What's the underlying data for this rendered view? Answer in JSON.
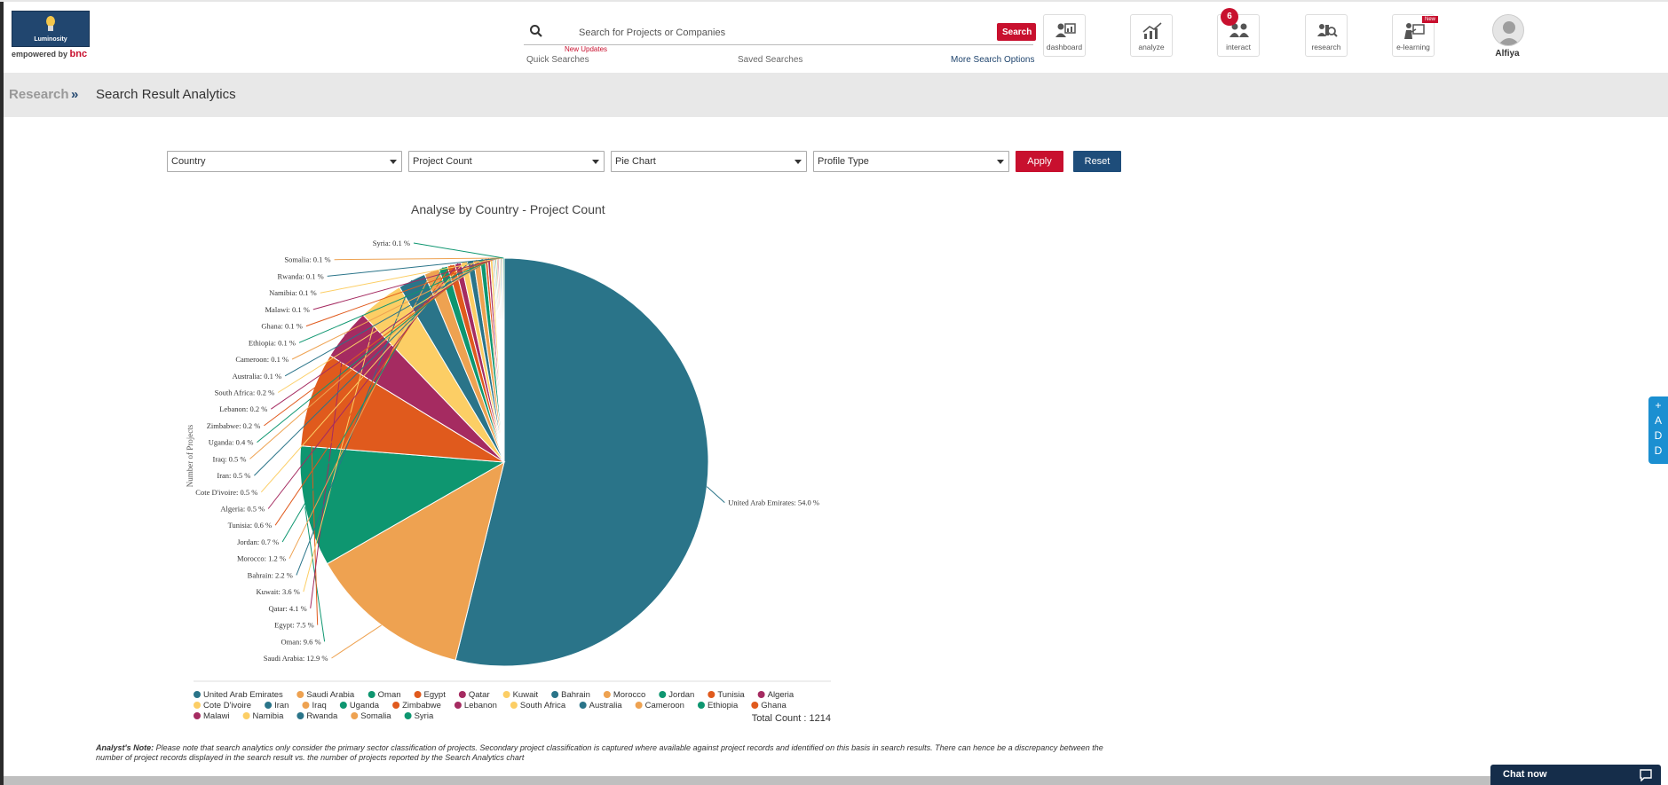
{
  "header": {
    "logo_text": "Luminosity",
    "logo_sub": "empowered by",
    "logo_brand": "bnc",
    "search_placeholder": "Search for Projects or Companies",
    "search_button": "Search",
    "new_updates": "New Updates",
    "quick_searches": "Quick Searches",
    "saved_searches": "Saved Searches",
    "more_options": "More Search Options",
    "tools": [
      {
        "label": "dashboard",
        "icon": "dashboard-icon"
      },
      {
        "label": "analyze",
        "icon": "analyze-icon"
      },
      {
        "label": "interact",
        "icon": "interact-icon"
      },
      {
        "label": "research",
        "icon": "research-icon"
      },
      {
        "label": "e-learning",
        "icon": "e-learning-icon"
      }
    ],
    "interact_badge": "6",
    "elearning_tag": "New",
    "user_name": "Alfiya"
  },
  "breadcrumb": {
    "root": "Research",
    "separator": "»",
    "current": "Search Result Analytics"
  },
  "filters": {
    "group_by": "Country",
    "measure": "Project Count",
    "chart_type": "Pie Chart",
    "profile": "Profile Type",
    "apply": "Apply",
    "reset": "Reset"
  },
  "chart_data": {
    "type": "pie",
    "title": "Analyse by Country - Project Count",
    "ylabel": "Number of Projects",
    "total_count_label": "Total Count : 1214",
    "legend_position": "bottom",
    "slices": [
      {
        "name": "United Arab Emirates",
        "pct": 54.0,
        "color": "#2a7489"
      },
      {
        "name": "Saudi Arabia",
        "pct": 12.9,
        "color": "#eea251"
      },
      {
        "name": "Oman",
        "pct": 9.6,
        "color": "#0e9670"
      },
      {
        "name": "Egypt",
        "pct": 7.5,
        "color": "#e05a1d"
      },
      {
        "name": "Qatar",
        "pct": 4.1,
        "color": "#a52b61"
      },
      {
        "name": "Kuwait",
        "pct": 3.6,
        "color": "#fcce65"
      },
      {
        "name": "Bahrain",
        "pct": 2.2,
        "color": "#2a7489"
      },
      {
        "name": "Morocco",
        "pct": 1.2,
        "color": "#eea251"
      },
      {
        "name": "Jordan",
        "pct": 0.7,
        "color": "#0e9670"
      },
      {
        "name": "Tunisia",
        "pct": 0.6,
        "color": "#e05a1d"
      },
      {
        "name": "Algeria",
        "pct": 0.5,
        "color": "#a52b61"
      },
      {
        "name": "Cote D'ivoire",
        "pct": 0.5,
        "color": "#fcce65"
      },
      {
        "name": "Iran",
        "pct": 0.5,
        "color": "#2a7489"
      },
      {
        "name": "Iraq",
        "pct": 0.5,
        "color": "#eea251"
      },
      {
        "name": "Uganda",
        "pct": 0.4,
        "color": "#0e9670"
      },
      {
        "name": "Zimbabwe",
        "pct": 0.2,
        "color": "#e05a1d"
      },
      {
        "name": "Lebanon",
        "pct": 0.2,
        "color": "#a52b61"
      },
      {
        "name": "South Africa",
        "pct": 0.2,
        "color": "#fcce65"
      },
      {
        "name": "Australia",
        "pct": 0.1,
        "color": "#2a7489"
      },
      {
        "name": "Cameroon",
        "pct": 0.1,
        "color": "#eea251"
      },
      {
        "name": "Ethiopia",
        "pct": 0.1,
        "color": "#0e9670"
      },
      {
        "name": "Ghana",
        "pct": 0.1,
        "color": "#e05a1d"
      },
      {
        "name": "Malawi",
        "pct": 0.1,
        "color": "#a52b61"
      },
      {
        "name": "Namibia",
        "pct": 0.1,
        "color": "#fcce65"
      },
      {
        "name": "Rwanda",
        "pct": 0.1,
        "color": "#2a7489"
      },
      {
        "name": "Somalia",
        "pct": 0.1,
        "color": "#eea251"
      },
      {
        "name": "Syria",
        "pct": 0.1,
        "color": "#0e9670"
      }
    ]
  },
  "note": {
    "label": "Analyst's Note:",
    "text": "Please note that search analytics only consider the primary sector classification of projects. Secondary project classification is captured where available against project records and identified on this basis in search results. There can hence be a discrepancy between the number of project records displayed in the search result vs. the number of projects reported by the Search Analytics chart"
  },
  "side_tab": {
    "plus": "+",
    "letters": [
      "A",
      "D",
      "D"
    ]
  },
  "chat_label": "Chat now"
}
